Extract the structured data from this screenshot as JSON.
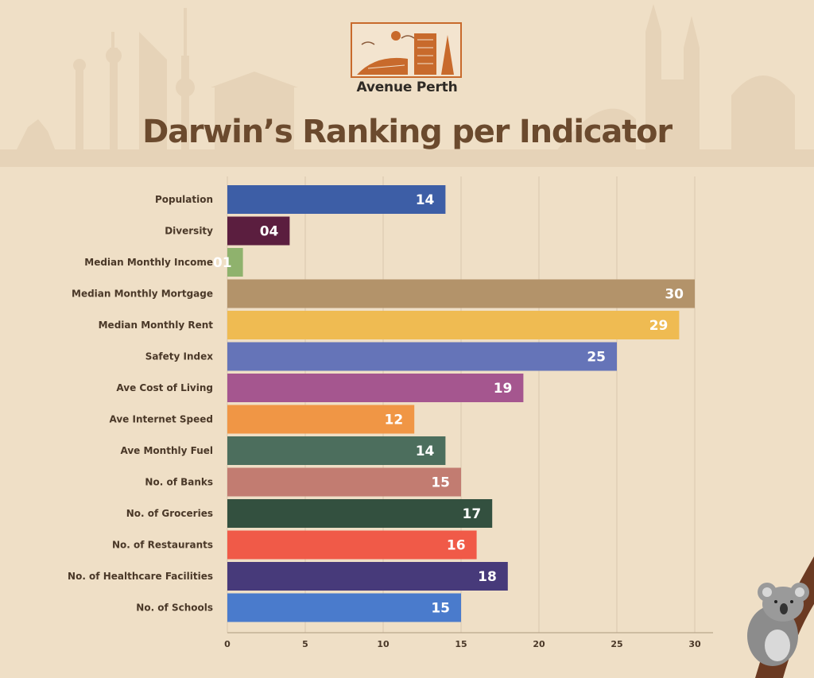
{
  "brand": {
    "name": "Avenue Perth"
  },
  "page": {
    "title": "Darwin’s Ranking per Indicator"
  },
  "colors": {
    "background": "#efdfc6",
    "title": "#6b4a2e",
    "grid": "#d9c7ad",
    "axis": "#b9a68c"
  },
  "icons": [
    "skyline-illustration",
    "city-logo-illustration",
    "koala-illustration"
  ],
  "chart_data": {
    "type": "bar",
    "orientation": "horizontal",
    "title": "Darwin’s Ranking per Indicator",
    "xlabel": "",
    "ylabel": "",
    "xlim": [
      0,
      30
    ],
    "xticks": [
      0,
      5,
      10,
      15,
      20,
      25,
      30
    ],
    "grid": true,
    "legend": "none",
    "categories": [
      "Population",
      "Diversity",
      "Median Monthly Income",
      "Median Monthly Mortgage",
      "Median Monthly Rent",
      "Safety Index",
      "Ave Cost of Living",
      "Ave Internet Speed",
      "Ave Monthly Fuel",
      "No. of Banks",
      "No. of Groceries",
      "No. of Restaurants",
      "No. of Healthcare Facilities",
      "No. of Schools"
    ],
    "values": [
      14,
      4,
      1,
      30,
      29,
      25,
      19,
      12,
      14,
      15,
      17,
      16,
      18,
      15
    ],
    "labels": [
      "14",
      "04",
      "01",
      "30",
      "29",
      "25",
      "19",
      "12",
      "14",
      "15",
      "17",
      "16",
      "18",
      "15"
    ],
    "bar_colors": [
      "#3d5ea6",
      "#5b1e3f",
      "#8fb26d",
      "#b3936a",
      "#efbb52",
      "#6574b8",
      "#a5568f",
      "#f09645",
      "#4c6e5d",
      "#c27c71",
      "#33503f",
      "#f05a48",
      "#473a7a",
      "#4a7bcc"
    ]
  }
}
